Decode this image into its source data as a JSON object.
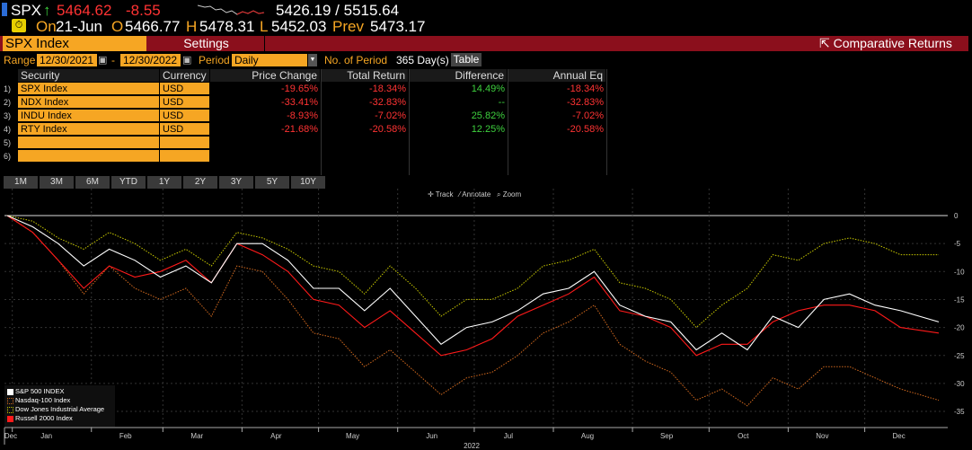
{
  "ticker": {
    "symbol": "SPX",
    "arrow": "↑",
    "last": "5464.62",
    "change": "-8.55",
    "range": "5426.19 / 5515.64",
    "on_label": "On",
    "date": "21-Jun",
    "o_label": "O",
    "open": "5466.77",
    "h_label": "H",
    "high": "5478.31",
    "l_label": "L",
    "low": "5452.03",
    "prev_label": "Prev",
    "prev": "5473.17"
  },
  "header": {
    "security": "SPX Index",
    "settings": "Settings",
    "title": "Comparative Returns",
    "title_icon": "external-link-icon"
  },
  "controls": {
    "range_label": "Range",
    "start": "12/30/2021",
    "dash": "-",
    "end": "12/30/2022",
    "period_label": "Period",
    "period": "Daily",
    "nop_label": "No. of Period",
    "nop": "365 Day(s)",
    "table_btn": "Table"
  },
  "table": {
    "columns": [
      "Security",
      "Currency",
      "Price Change",
      "Total Return",
      "Difference",
      "Annual Eq"
    ],
    "rows": [
      {
        "n": "1)",
        "security": "SPX Index",
        "currency": "USD",
        "price_change": "-19.65%",
        "total_return": "-18.34%",
        "difference": "14.49%",
        "annual_eq": "-18.34%"
      },
      {
        "n": "2)",
        "security": "NDX Index",
        "currency": "USD",
        "price_change": "-33.41%",
        "total_return": "-32.83%",
        "difference": "--",
        "annual_eq": "-32.83%"
      },
      {
        "n": "3)",
        "security": "INDU Index",
        "currency": "USD",
        "price_change": "-8.93%",
        "total_return": "-7.02%",
        "difference": "25.82%",
        "annual_eq": "-7.02%"
      },
      {
        "n": "4)",
        "security": "RTY Index",
        "currency": "USD",
        "price_change": "-21.68%",
        "total_return": "-20.58%",
        "difference": "12.25%",
        "annual_eq": "-20.58%"
      },
      {
        "n": "5)",
        "security": "",
        "currency": "",
        "price_change": "",
        "total_return": "",
        "difference": "",
        "annual_eq": ""
      },
      {
        "n": "6)",
        "security": "",
        "currency": "",
        "price_change": "",
        "total_return": "",
        "difference": "",
        "annual_eq": ""
      }
    ]
  },
  "timebuttons": [
    "1M",
    "3M",
    "6M",
    "YTD",
    "1Y",
    "2Y",
    "3Y",
    "5Y",
    "10Y"
  ],
  "chart_tools": [
    "Track",
    "Annotate",
    "Zoom"
  ],
  "chart_data": {
    "type": "line",
    "xlabel": "2022",
    "month_labels": [
      "Dec",
      "Jan",
      "Feb",
      "Mar",
      "Apr",
      "May",
      "Jun",
      "Jul",
      "Aug",
      "Sep",
      "Oct",
      "Nov",
      "Dec"
    ],
    "yticks": [
      0,
      -5,
      -10,
      -15,
      -20,
      -25,
      -30,
      -35
    ],
    "ylim": [
      -37,
      2
    ],
    "xlim": [
      "2021-12-30",
      "2022-12-30"
    ],
    "grid": true,
    "legend": "bottom-left",
    "x": [
      "2021-12-30",
      "2022-01-09",
      "2022-01-19",
      "2022-01-29",
      "2022-02-08",
      "2022-02-18",
      "2022-02-28",
      "2022-03-10",
      "2022-03-20",
      "2022-03-30",
      "2022-04-09",
      "2022-04-19",
      "2022-04-29",
      "2022-05-09",
      "2022-05-19",
      "2022-05-29",
      "2022-06-08",
      "2022-06-18",
      "2022-06-28",
      "2022-07-08",
      "2022-07-18",
      "2022-07-28",
      "2022-08-07",
      "2022-08-17",
      "2022-08-27",
      "2022-09-06",
      "2022-09-16",
      "2022-09-26",
      "2022-10-06",
      "2022-10-16",
      "2022-10-26",
      "2022-11-05",
      "2022-11-15",
      "2022-11-25",
      "2022-12-05",
      "2022-12-15",
      "2022-12-30"
    ],
    "series": [
      {
        "name": "S&P 500 INDEX",
        "color": "#ffffff",
        "style": "solid",
        "values": [
          0,
          -2,
          -5,
          -9,
          -6,
          -8,
          -11,
          -9,
          -12,
          -5,
          -5,
          -8,
          -13,
          -13,
          -17,
          -13,
          -18,
          -23,
          -20,
          -19,
          -17,
          -14,
          -13,
          -10,
          -16,
          -18,
          -19,
          -24,
          -21,
          -24,
          -18,
          -20,
          -15,
          -14,
          -16,
          -17,
          -19
        ]
      },
      {
        "name": "Nasdaq-100 Index",
        "color": "#d2691e",
        "style": "dotted",
        "values": [
          0,
          -3,
          -8,
          -14,
          -9,
          -13,
          -15,
          -13,
          -18,
          -9,
          -10,
          -15,
          -21,
          -22,
          -27,
          -24,
          -28,
          -32,
          -29,
          -28,
          -25,
          -21,
          -19,
          -16,
          -23,
          -26,
          -28,
          -33,
          -31,
          -34,
          -29,
          -31,
          -27,
          -27,
          -29,
          -31,
          -33
        ]
      },
      {
        "name": "Dow Jones Industrial Average",
        "color": "#c8c800",
        "style": "dotted",
        "values": [
          0,
          -1,
          -4,
          -6,
          -3,
          -5,
          -8,
          -6,
          -9,
          -3,
          -4,
          -6,
          -9,
          -10,
          -14,
          -9,
          -13,
          -18,
          -15,
          -15,
          -13,
          -9,
          -8,
          -6,
          -12,
          -13,
          -15,
          -20,
          -16,
          -13,
          -7,
          -8,
          -5,
          -4,
          -5,
          -7,
          -7
        ]
      },
      {
        "name": "Russell 2000 Index",
        "color": "#ff1a1a",
        "style": "solid",
        "values": [
          0,
          -3,
          -8,
          -13,
          -9,
          -11,
          -10,
          -8,
          -12,
          -5,
          -7,
          -10,
          -15,
          -16,
          -20,
          -17,
          -21,
          -25,
          -24,
          -22,
          -18,
          -16,
          -14,
          -11,
          -17,
          -18,
          -20,
          -25,
          -23,
          -23,
          -19,
          -17,
          -16,
          -16,
          -17,
          -20,
          -21
        ]
      }
    ]
  }
}
